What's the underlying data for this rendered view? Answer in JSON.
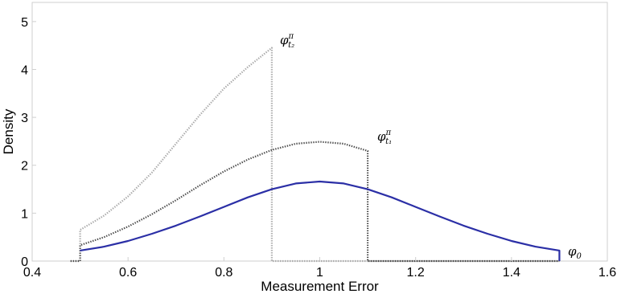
{
  "chart_data": {
    "type": "line",
    "xlabel": "Measurement Error",
    "ylabel": "Density",
    "xlim": [
      0.4,
      1.6
    ],
    "ylim": [
      0,
      5.4
    ],
    "xticks": [
      "0.4",
      "0.6",
      "0.8",
      "1",
      "1.2",
      "1.4",
      "1.6"
    ],
    "yticks": [
      "0",
      "1",
      "2",
      "3",
      "4",
      "5"
    ],
    "grid": false,
    "legend": "inline labels at line ends",
    "series": [
      {
        "name": "φ_t2^π",
        "label_main": "φ",
        "label_sub": "t₂",
        "label_sup": "π",
        "style": "dotted",
        "color": "#a9a9a9",
        "x": [
          0.48,
          0.5,
          0.5,
          0.55,
          0.6,
          0.65,
          0.7,
          0.75,
          0.8,
          0.85,
          0.9,
          0.9,
          0.95,
          1.0,
          1.1,
          1.2,
          1.3,
          1.4,
          1.5
        ],
        "y": [
          0,
          0,
          0.65,
          0.95,
          1.35,
          1.85,
          2.45,
          3.05,
          3.6,
          4.05,
          4.45,
          0,
          0,
          0,
          0,
          0,
          0,
          0,
          0
        ]
      },
      {
        "name": "φ_t1^π",
        "label_main": "φ",
        "label_sub": "t₁",
        "label_sup": "π",
        "style": "dotted",
        "color": "#4a4a4a",
        "x": [
          0.48,
          0.5,
          0.5,
          0.55,
          0.6,
          0.65,
          0.7,
          0.75,
          0.8,
          0.85,
          0.9,
          0.95,
          1.0,
          1.05,
          1.1,
          1.1,
          1.2,
          1.3,
          1.4,
          1.5
        ],
        "y": [
          0,
          0,
          0.33,
          0.5,
          0.72,
          0.98,
          1.27,
          1.58,
          1.87,
          2.12,
          2.32,
          2.45,
          2.49,
          2.45,
          2.3,
          0,
          0,
          0,
          0,
          0
        ]
      },
      {
        "name": "φ_0",
        "label_main": "φ",
        "label_sub": "0",
        "label_sup": "",
        "style": "solid",
        "color": "#2b2fa6",
        "x": [
          0.5,
          0.55,
          0.6,
          0.65,
          0.7,
          0.75,
          0.8,
          0.85,
          0.9,
          0.95,
          1.0,
          1.05,
          1.1,
          1.15,
          1.2,
          1.25,
          1.3,
          1.35,
          1.4,
          1.45,
          1.5,
          1.5
        ],
        "y": [
          0.22,
          0.3,
          0.42,
          0.57,
          0.74,
          0.93,
          1.13,
          1.33,
          1.5,
          1.62,
          1.66,
          1.62,
          1.5,
          1.33,
          1.13,
          0.93,
          0.74,
          0.57,
          0.42,
          0.3,
          0.22,
          0
        ]
      }
    ]
  }
}
